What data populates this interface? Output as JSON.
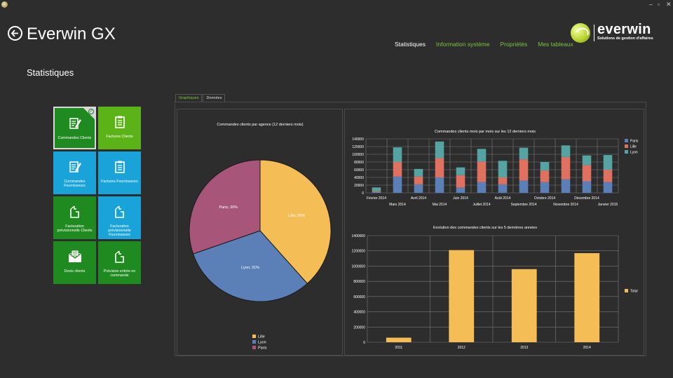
{
  "window": {
    "minimize": "–",
    "maximize": "▫",
    "close": "✕"
  },
  "header": {
    "title": "Everwin GX",
    "back_icon": "arrow-left-icon"
  },
  "nav": [
    {
      "label": "Statistiques",
      "active": true
    },
    {
      "label": "Information système",
      "active": false
    },
    {
      "label": "Propriétés",
      "active": false
    },
    {
      "label": "Mes tableaux",
      "active": false
    }
  ],
  "logo": {
    "name": "everwin",
    "tagline": "Solutions de gestion d'affaires"
  },
  "page": {
    "title": "Statistiques"
  },
  "tiles": [
    {
      "label": "Commandes Clients",
      "icon": "pencil-document-icon",
      "color": "#1f8a1f",
      "selected": true
    },
    {
      "label": "Factures Clients",
      "icon": "clipboard-icon",
      "color": "#5cb318",
      "selected": false
    },
    {
      "label": "Commandes Fournisseurs",
      "icon": "pencil-document-icon",
      "color": "#1aa3d9",
      "selected": false
    },
    {
      "label": "Factures Fournisseurs",
      "icon": "clipboard-icon",
      "color": "#1aa3d9",
      "selected": false
    },
    {
      "label": "Facturation prévisionnelle Clients",
      "icon": "forecast-document-icon",
      "color": "#1f8a1f",
      "selected": false
    },
    {
      "label": "Facturation prévisionnelle Fournisseurs",
      "icon": "forecast-document-icon",
      "color": "#1aa3d9",
      "selected": false
    },
    {
      "label": "Devis clients",
      "icon": "envelope-icon",
      "color": "#1f8a1f",
      "selected": false
    },
    {
      "label": "Prévision entrée en commande",
      "icon": "forecast-document-icon",
      "color": "#1f8a1f",
      "selected": false
    }
  ],
  "tabs": [
    {
      "label": "Graphiques",
      "active": true
    },
    {
      "label": "Données",
      "active": false
    }
  ],
  "colors": {
    "paris": "#a8557a",
    "lille": "#f5bd55",
    "lyon": "#5b80b8",
    "stack_lyon": "#55a3a3",
    "total": "#f5bd55",
    "accent": "#7dc341"
  },
  "chart_data": [
    {
      "type": "pie",
      "title": "Commandes clients par agence (12 derniers mois)",
      "slices": [
        {
          "name": "Lille",
          "value": 38,
          "label": "Lille; 38%"
        },
        {
          "name": "Lyon",
          "value": 31,
          "label": "Lyon; 31%"
        },
        {
          "name": "Paris",
          "value": 30,
          "label": "Paris; 30%"
        }
      ],
      "legend": [
        "Lille",
        "Lyon",
        "Paris"
      ],
      "legend_position": "bottom"
    },
    {
      "type": "bar",
      "stacked": true,
      "title": "Commandes clients mois par mois sur les 12 derniers mois",
      "categories": [
        "Février 2014",
        "Mars 2014",
        "Avril 2014",
        "Mai 2014",
        "Juin 2014",
        "Juillet 2014",
        "Août 2014",
        "Septembre 2014",
        "Octobre 2014",
        "Novembre 2014",
        "Décembre 2014",
        "Janvier 2015"
      ],
      "series": [
        {
          "name": "Paris",
          "values": [
            2000,
            42000,
            22000,
            40000,
            14000,
            28000,
            22000,
            32000,
            28000,
            35000,
            30000,
            28000
          ]
        },
        {
          "name": "Lille",
          "values": [
            2000,
            38000,
            20000,
            50000,
            32000,
            53000,
            18000,
            55000,
            30000,
            58000,
            42000,
            32000
          ]
        },
        {
          "name": "Lyon",
          "values": [
            10000,
            38000,
            20000,
            43000,
            20000,
            33000,
            43000,
            30000,
            22000,
            30000,
            25000,
            38000
          ]
        }
      ],
      "yticks": [
        "0",
        "20000",
        "40000",
        "60000",
        "80000",
        "100000",
        "120000",
        "140000"
      ],
      "ylim": [
        0,
        140000
      ],
      "legend_position": "right",
      "grid": true
    },
    {
      "type": "bar",
      "title": "Evolution des commandes clients sur les 5 dernières années",
      "categories": [
        "2011",
        "2012",
        "2013",
        "2014"
      ],
      "series": [
        {
          "name": "Total",
          "values": [
            60000,
            1210000,
            960000,
            1170000
          ]
        }
      ],
      "yticks": [
        "0",
        "200000",
        "400000",
        "600000",
        "800000",
        "1000000",
        "1200000",
        "1400000"
      ],
      "ylim": [
        0,
        1400000
      ],
      "legend_position": "right",
      "grid": true
    }
  ]
}
